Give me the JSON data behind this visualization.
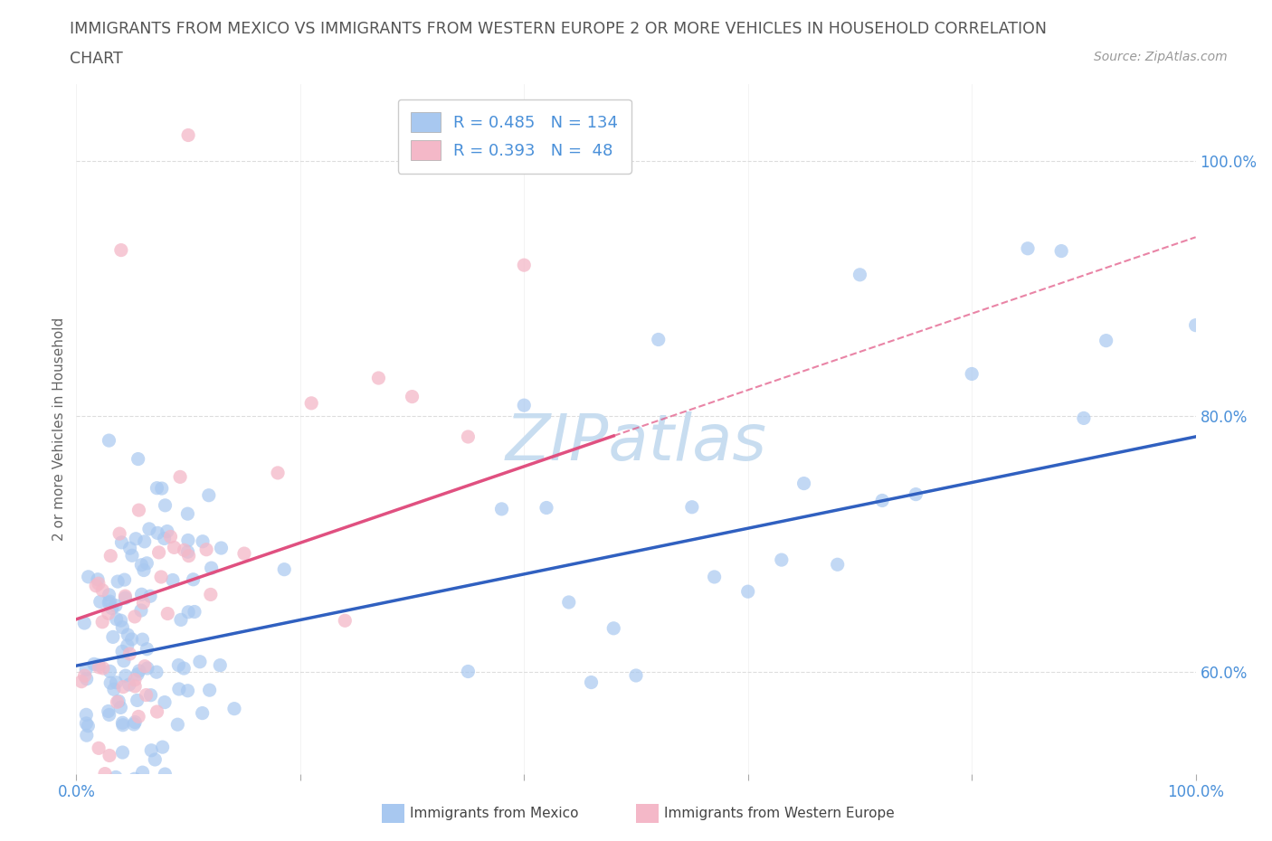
{
  "title_line1": "IMMIGRANTS FROM MEXICO VS IMMIGRANTS FROM WESTERN EUROPE 2 OR MORE VEHICLES IN HOUSEHOLD CORRELATION",
  "title_line2": "CHART",
  "source_text": "Source: ZipAtlas.com",
  "ylabel": "2 or more Vehicles in Household",
  "legend_label1": "Immigrants from Mexico",
  "legend_label2": "Immigrants from Western Europe",
  "R1": 0.485,
  "N1": 134,
  "R2": 0.393,
  "N2": 48,
  "color1": "#a8c8f0",
  "color2": "#f4b8c8",
  "line_color1": "#3060c0",
  "line_color2": "#e05080",
  "background_color": "#ffffff",
  "xmin": 0.0,
  "xmax": 1.0,
  "ymin": 0.52,
  "ymax": 1.06,
  "watermark_text": "ZIPatlas",
  "watermark_color": "#c8ddf0",
  "title_color": "#555555",
  "tick_color": "#4a90d9",
  "ylabel_color": "#666666",
  "source_color": "#999999",
  "grid_color": "#dddddd"
}
